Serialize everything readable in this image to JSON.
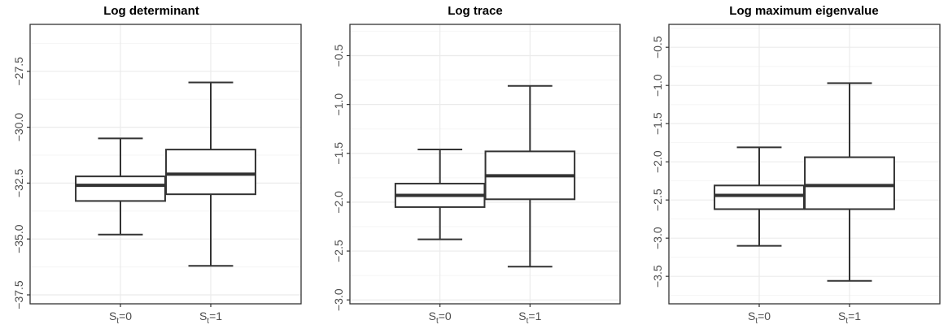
{
  "chart_data": [
    {
      "type": "boxplot",
      "title": "Log determinant",
      "categories": [
        "S_t=0",
        "S_t=1"
      ],
      "category_labels": [
        {
          "base": "S",
          "sub": "t",
          "rest": "=0"
        },
        {
          "base": "S",
          "sub": "t",
          "rest": "=1"
        }
      ],
      "yticks": [
        -37.5,
        -35.0,
        -32.5,
        -30.0,
        -27.5
      ],
      "ytick_labels": [
        "−37.5",
        "−35.0",
        "−32.5",
        "−30.0",
        "−27.5"
      ],
      "ylim": [
        -37.9,
        -25.4
      ],
      "boxes": [
        {
          "lower_whisker": -34.8,
          "q1": -33.3,
          "median": -32.6,
          "q3": -32.2,
          "upper_whisker": -30.5
        },
        {
          "lower_whisker": -36.2,
          "q1": -33.0,
          "median": -32.1,
          "q3": -31.0,
          "upper_whisker": -28.0
        }
      ],
      "grid": true
    },
    {
      "type": "boxplot",
      "title": "Log trace",
      "categories": [
        "S_t=0",
        "S_t=1"
      ],
      "category_labels": [
        {
          "base": "S",
          "sub": "t",
          "rest": "=0"
        },
        {
          "base": "S",
          "sub": "t",
          "rest": "=1"
        }
      ],
      "yticks": [
        -3.0,
        -2.5,
        -2.0,
        -1.5,
        -1.0,
        -0.5
      ],
      "ytick_labels": [
        "−3.0",
        "−2.5",
        "−2.0",
        "−1.5",
        "−1.0",
        "−0.5"
      ],
      "ylim": [
        -3.04,
        -0.18
      ],
      "boxes": [
        {
          "lower_whisker": -2.38,
          "q1": -2.05,
          "median": -1.93,
          "q3": -1.81,
          "upper_whisker": -1.46
        },
        {
          "lower_whisker": -2.66,
          "q1": -1.97,
          "median": -1.73,
          "q3": -1.48,
          "upper_whisker": -0.81
        }
      ],
      "grid": true
    },
    {
      "type": "boxplot",
      "title": "Log maximum eigenvalue",
      "categories": [
        "S_t=0",
        "S_t=1"
      ],
      "category_labels": [
        {
          "base": "S",
          "sub": "t",
          "rest": "=0"
        },
        {
          "base": "S",
          "sub": "t",
          "rest": "=1"
        }
      ],
      "yticks": [
        -3.5,
        -3.0,
        -2.5,
        -2.0,
        -1.5,
        -1.0,
        -0.5
      ],
      "ytick_labels": [
        "−3.5",
        "−3.0",
        "−2.5",
        "−2.0",
        "−1.5",
        "−1.0",
        "−0.5"
      ],
      "ylim": [
        -3.86,
        -0.2
      ],
      "boxes": [
        {
          "lower_whisker": -3.1,
          "q1": -2.62,
          "median": -2.44,
          "q3": -2.31,
          "upper_whisker": -1.81
        },
        {
          "lower_whisker": -3.56,
          "q1": -2.62,
          "median": -2.31,
          "q3": -1.94,
          "upper_whisker": -0.97
        }
      ],
      "grid": true
    }
  ],
  "style": {
    "panel_border": "#333333",
    "grid_major": "#ebebeb",
    "grid_minor": "#f5f5f5",
    "box_line": "#333333",
    "box_fill": "#ffffff",
    "text": "#4d4d4d"
  }
}
